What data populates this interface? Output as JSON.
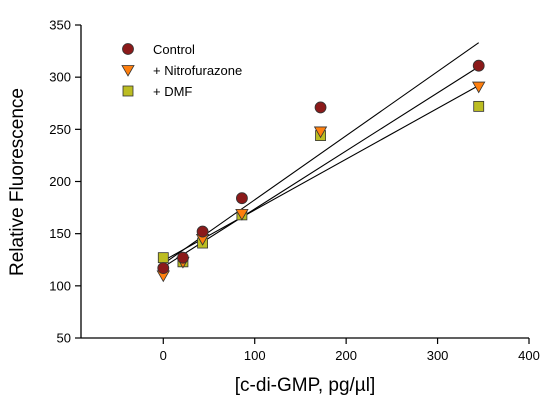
{
  "chart_data": {
    "type": "scatter",
    "title": "",
    "xlabel": "[c-di-GMP, pg/µl]",
    "ylabel": "Relative Fluorescence",
    "xlim": [
      -90,
      400
    ],
    "ylim": [
      50,
      350
    ],
    "xticks": [
      0,
      100,
      200,
      300,
      400
    ],
    "yticks": [
      50,
      100,
      150,
      200,
      250,
      300,
      350
    ],
    "legend_position": "top-left",
    "grid": false,
    "series": [
      {
        "name": "Control",
        "marker": "circle",
        "color": "#8b1a1a",
        "points": [
          [
            0,
            117
          ],
          [
            21.5,
            127
          ],
          [
            43,
            152
          ],
          [
            86,
            184
          ],
          [
            172,
            271
          ],
          [
            345,
            311
          ]
        ],
        "fit": [
          [
            0,
            121
          ],
          [
            345,
            333
          ]
        ]
      },
      {
        "name": "+ Nitrofurazone",
        "marker": "triangle-down",
        "color": "#ff7f0e",
        "points": [
          [
            0,
            110
          ],
          [
            21.5,
            123
          ],
          [
            43,
            145
          ],
          [
            86,
            169
          ],
          [
            172,
            248
          ],
          [
            345,
            291
          ]
        ],
        "fit": [
          [
            0,
            118
          ],
          [
            345,
            310
          ]
        ]
      },
      {
        "name": "+ DMF",
        "marker": "square",
        "color": "#bcbd22",
        "points": [
          [
            0,
            127
          ],
          [
            21.5,
            123
          ],
          [
            43,
            141
          ],
          [
            86,
            168
          ],
          [
            172,
            244
          ],
          [
            345,
            272
          ]
        ],
        "fit": [
          [
            0,
            124
          ],
          [
            345,
            292
          ]
        ]
      }
    ]
  }
}
